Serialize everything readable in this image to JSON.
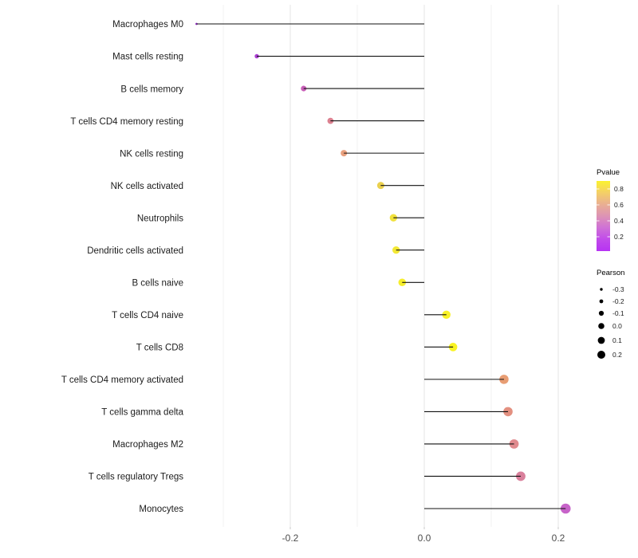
{
  "chart_data": {
    "type": "scatter",
    "variant": "horizontal-lollipop",
    "title": "",
    "xlabel": "",
    "ylabel": "",
    "x_tick_labels": [
      "-0.2",
      "0.0",
      "0.2"
    ],
    "x_tick_values": [
      -0.2,
      0.0,
      0.2
    ],
    "x_minor_gridlines": [
      -0.3,
      -0.1,
      0.1
    ],
    "xlim": [
      -0.37,
      0.24
    ],
    "baseline": 0.0,
    "grid": "vertical-only",
    "legend_position": "right",
    "points": [
      {
        "label": "Macrophages M0",
        "pearson": -0.34,
        "pvalue_est": 0.1,
        "color": "#9a35c9"
      },
      {
        "label": "Mast cells resting",
        "pearson": -0.25,
        "pvalue_est": 0.17,
        "color": "#ac40d4"
      },
      {
        "label": "B cells memory",
        "pearson": -0.18,
        "pvalue_est": 0.33,
        "color": "#c75fb7"
      },
      {
        "label": "T cells CD4 memory resting",
        "pearson": -0.14,
        "pvalue_est": 0.45,
        "color": "#dc8190"
      },
      {
        "label": "NK cells resting",
        "pearson": -0.12,
        "pvalue_est": 0.55,
        "color": "#e9a07e"
      },
      {
        "label": "NK cells activated",
        "pearson": -0.065,
        "pvalue_est": 0.7,
        "color": "#ead04e"
      },
      {
        "label": "Neutrophils",
        "pearson": -0.046,
        "pvalue_est": 0.76,
        "color": "#f1e13b"
      },
      {
        "label": "Dendritic cells activated",
        "pearson": -0.042,
        "pvalue_est": 0.78,
        "color": "#f3e835"
      },
      {
        "label": "B cells naive",
        "pearson": -0.033,
        "pvalue_est": 0.82,
        "color": "#f6ee2c"
      },
      {
        "label": "T cells CD4 naive",
        "pearson": 0.033,
        "pvalue_est": 0.85,
        "color": "#f8f127"
      },
      {
        "label": "T cells CD8",
        "pearson": 0.043,
        "pvalue_est": 0.86,
        "color": "#f9f321"
      },
      {
        "label": "T cells CD4 memory activated",
        "pearson": 0.119,
        "pvalue_est": 0.57,
        "color": "#e89d73"
      },
      {
        "label": "T cells gamma delta",
        "pearson": 0.125,
        "pvalue_est": 0.52,
        "color": "#e39080"
      },
      {
        "label": "Macrophages M2",
        "pearson": 0.134,
        "pvalue_est": 0.47,
        "color": "#e08a8e"
      },
      {
        "label": "T cells regulatory  Tregs",
        "pearson": 0.144,
        "pvalue_est": 0.41,
        "color": "#d9809c"
      },
      {
        "label": "Monocytes",
        "pearson": 0.211,
        "pvalue_est": 0.22,
        "color": "#c763c9"
      }
    ],
    "legend_pvalue": {
      "title": "Pvalue",
      "tick_labels": [
        "0.8",
        "0.6",
        "0.4",
        "0.2"
      ],
      "gradient_top_to_bottom": [
        "#fbf22e",
        "#f4cf67",
        "#e9af92",
        "#dd93b5",
        "#cf71d6",
        "#c14bea",
        "#b733f3"
      ]
    },
    "legend_pearson": {
      "title": "Pearson",
      "labels": [
        "-0.3",
        "-0.2",
        "-0.1",
        "0.0",
        "0.1",
        "0.2"
      ],
      "values": [
        -0.3,
        -0.2,
        -0.1,
        0.0,
        0.1,
        0.2
      ],
      "dot_color": "#000000"
    },
    "colors": {
      "stem": "#111111",
      "major_grid": "#e6e6e6",
      "minor_grid": "#f1f1f1",
      "axis_text": "#4d4d4d",
      "category_text": "#1c1c1c",
      "background": "#ffffff"
    }
  }
}
